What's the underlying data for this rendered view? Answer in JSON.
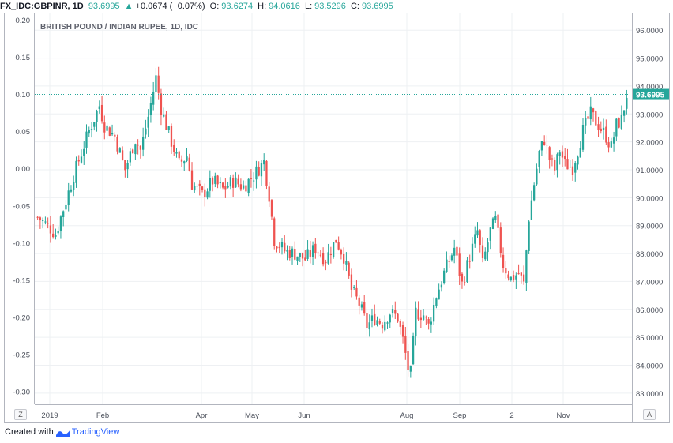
{
  "header": {
    "symbol": "FX_IDC:GBPINR, 1D",
    "last": "93.6995",
    "change_arrow": "▲",
    "change": "+0.0674 (+0.07%)",
    "o_label": "O:",
    "o_val": "93.6274",
    "h_label": "H:",
    "h_val": "94.0616",
    "l_label": "L:",
    "l_val": "93.5296",
    "c_label": "C:",
    "c_val": "93.6995"
  },
  "footer": {
    "created_with": "Created with",
    "brand": "TradingView"
  },
  "buttons": {
    "left": "Z",
    "right": "A"
  },
  "colors": {
    "up": "#26a69a",
    "down": "#ef5350",
    "grid": "#eef0f3",
    "last_line": "#26a69a"
  },
  "chart_data": {
    "type": "candlestick",
    "title": "BRITISH POUND / INDIAN RUPEE, 1D, IDC",
    "right_axis": {
      "range": [
        82.6,
        96.6
      ],
      "ticks": [
        "96.0000",
        "95.0000",
        "94.0000",
        "93.0000",
        "92.0000",
        "91.0000",
        "90.0000",
        "89.0000",
        "88.0000",
        "87.0000",
        "86.0000",
        "85.0000",
        "84.0000",
        "83.0000"
      ]
    },
    "left_axis": {
      "range": [
        -0.3175,
        0.2085
      ],
      "ticks": [
        "0.20",
        "0.15",
        "0.10",
        "0.05",
        "0.00",
        "-0.05",
        "-0.10",
        "-0.15",
        "-0.20",
        "-0.25",
        "-0.30"
      ]
    },
    "x_labels": [
      "2019",
      "Feb",
      "Apr",
      "May",
      "Jun",
      "Aug",
      "Sep",
      "2",
      "Nov"
    ],
    "last_price_label": "93.6995",
    "last_price": 93.6995,
    "close_path": [
      [
        0,
        89.3
      ],
      [
        5,
        88.9
      ],
      [
        7,
        88.7
      ],
      [
        10,
        89.6
      ],
      [
        14,
        90.8
      ],
      [
        20,
        92.4
      ],
      [
        24,
        93.3
      ],
      [
        26,
        92.6
      ],
      [
        30,
        92.2
      ],
      [
        34,
        91.0
      ],
      [
        38,
        92.1
      ],
      [
        40,
        91.7
      ],
      [
        43,
        92.9
      ],
      [
        46,
        94.3
      ],
      [
        48,
        93.2
      ],
      [
        52,
        92.0
      ],
      [
        55,
        91.2
      ],
      [
        58,
        91.5
      ],
      [
        60,
        90.5
      ],
      [
        64,
        90.1
      ],
      [
        68,
        90.6
      ],
      [
        72,
        90.3
      ],
      [
        76,
        90.6
      ],
      [
        80,
        90.4
      ],
      [
        84,
        90.8
      ],
      [
        88,
        91.3
      ],
      [
        90,
        90.1
      ],
      [
        92,
        88.5
      ],
      [
        96,
        88.1
      ],
      [
        100,
        88.0
      ],
      [
        104,
        87.8
      ],
      [
        108,
        88.2
      ],
      [
        112,
        87.8
      ],
      [
        116,
        88.5
      ],
      [
        119,
        87.9
      ],
      [
        122,
        86.7
      ],
      [
        125,
        86.2
      ],
      [
        128,
        85.4
      ],
      [
        131,
        85.7
      ],
      [
        134,
        85.5
      ],
      [
        137,
        85.9
      ],
      [
        140,
        85.7
      ],
      [
        142,
        84.9
      ],
      [
        144,
        83.9
      ],
      [
        145,
        83.7
      ],
      [
        147,
        85.9
      ],
      [
        150,
        85.8
      ],
      [
        152,
        85.4
      ],
      [
        155,
        86.5
      ],
      [
        158,
        87.3
      ],
      [
        162,
        88.2
      ],
      [
        165,
        86.9
      ],
      [
        168,
        87.9
      ],
      [
        171,
        88.8
      ],
      [
        173,
        87.6
      ],
      [
        176,
        88.8
      ],
      [
        178,
        89.2
      ],
      [
        181,
        87.6
      ],
      [
        184,
        87.1
      ],
      [
        187,
        87.3
      ],
      [
        189,
        86.9
      ],
      [
        191,
        89.3
      ],
      [
        193,
        90.5
      ],
      [
        195,
        91.6
      ],
      [
        197,
        92.1
      ],
      [
        199,
        91.4
      ],
      [
        201,
        91.0
      ],
      [
        203,
        91.7
      ],
      [
        205,
        91.2
      ],
      [
        208,
        91.1
      ],
      [
        210,
        91.7
      ],
      [
        212,
        92.4
      ],
      [
        215,
        93.0
      ],
      [
        218,
        92.6
      ],
      [
        221,
        92.2
      ],
      [
        223,
        91.8
      ],
      [
        225,
        92.6
      ],
      [
        227,
        92.8
      ],
      [
        229,
        93.7
      ]
    ]
  }
}
